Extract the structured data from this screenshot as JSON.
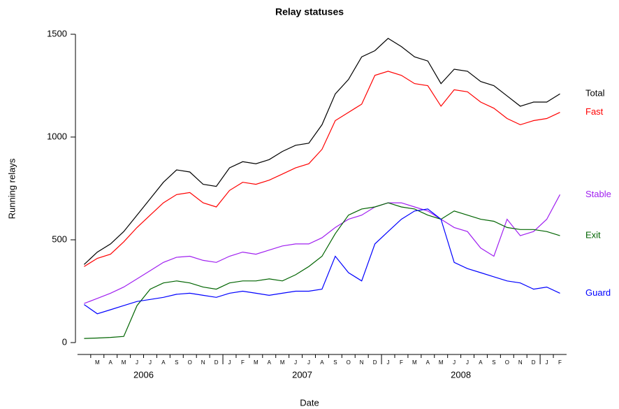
{
  "chart_data": {
    "type": "line",
    "title": "Relay statuses",
    "x_label": "Date",
    "y_label": "Running relays",
    "x": [
      "2006-02",
      "2006-03",
      "2006-04",
      "2006-05",
      "2006-06",
      "2006-07",
      "2006-08",
      "2006-09",
      "2006-10",
      "2006-11",
      "2006-12",
      "2007-01",
      "2007-02",
      "2007-03",
      "2007-04",
      "2007-05",
      "2007-06",
      "2007-07",
      "2007-08",
      "2007-09",
      "2007-10",
      "2007-11",
      "2007-12",
      "2008-01",
      "2008-02",
      "2008-03",
      "2008-04",
      "2008-05",
      "2008-06",
      "2008-07",
      "2008-08",
      "2008-09",
      "2008-10",
      "2008-11",
      "2008-12",
      "2009-01",
      "2009-02"
    ],
    "xlim": [
      "2006-02",
      "2009-02"
    ],
    "ylim": [
      0,
      1500
    ],
    "yticks": [
      0,
      500,
      1000,
      1500
    ],
    "month_ticks": [
      {
        "value": "2006-03",
        "label": "M"
      },
      {
        "value": "2006-04",
        "label": "A"
      },
      {
        "value": "2006-05",
        "label": "M"
      },
      {
        "value": "2006-06",
        "label": "J"
      },
      {
        "value": "2006-07",
        "label": "J"
      },
      {
        "value": "2006-08",
        "label": "A"
      },
      {
        "value": "2006-09",
        "label": "S"
      },
      {
        "value": "2006-10",
        "label": "O"
      },
      {
        "value": "2006-11",
        "label": "N"
      },
      {
        "value": "2006-12",
        "label": "D"
      },
      {
        "value": "2007-01",
        "label": "J"
      },
      {
        "value": "2007-02",
        "label": "F"
      },
      {
        "value": "2007-03",
        "label": "M"
      },
      {
        "value": "2007-04",
        "label": "A"
      },
      {
        "value": "2007-05",
        "label": "M"
      },
      {
        "value": "2007-06",
        "label": "J"
      },
      {
        "value": "2007-07",
        "label": "J"
      },
      {
        "value": "2007-08",
        "label": "A"
      },
      {
        "value": "2007-09",
        "label": "S"
      },
      {
        "value": "2007-10",
        "label": "O"
      },
      {
        "value": "2007-11",
        "label": "N"
      },
      {
        "value": "2007-12",
        "label": "D"
      },
      {
        "value": "2008-01",
        "label": "J"
      },
      {
        "value": "2008-02",
        "label": "F"
      },
      {
        "value": "2008-03",
        "label": "M"
      },
      {
        "value": "2008-04",
        "label": "A"
      },
      {
        "value": "2008-05",
        "label": "M"
      },
      {
        "value": "2008-06",
        "label": "J"
      },
      {
        "value": "2008-07",
        "label": "J"
      },
      {
        "value": "2008-08",
        "label": "A"
      },
      {
        "value": "2008-09",
        "label": "S"
      },
      {
        "value": "2008-10",
        "label": "O"
      },
      {
        "value": "2008-11",
        "label": "N"
      },
      {
        "value": "2008-12",
        "label": "D"
      },
      {
        "value": "2009-01",
        "label": "J"
      },
      {
        "value": "2009-02",
        "label": "F"
      }
    ],
    "years": [
      2006,
      2007,
      2008
    ],
    "series": [
      {
        "name": "Total",
        "color": "#000000",
        "values": [
          380,
          440,
          480,
          540,
          620,
          700,
          780,
          840,
          830,
          770,
          760,
          850,
          880,
          870,
          890,
          930,
          960,
          970,
          1060,
          1210,
          1280,
          1390,
          1420,
          1480,
          1440,
          1390,
          1370,
          1260,
          1330,
          1320,
          1270,
          1250,
          1200,
          1150,
          1170,
          1170,
          1210
        ]
      },
      {
        "name": "Fast",
        "color": "#ff0000",
        "values": [
          370,
          410,
          430,
          490,
          560,
          620,
          680,
          720,
          730,
          680,
          660,
          740,
          780,
          770,
          790,
          820,
          850,
          870,
          940,
          1080,
          1120,
          1160,
          1300,
          1320,
          1300,
          1260,
          1250,
          1150,
          1230,
          1220,
          1170,
          1140,
          1090,
          1060,
          1080,
          1090,
          1120
        ]
      },
      {
        "name": "Stable",
        "color": "#a020f0",
        "values": [
          190,
          215,
          240,
          270,
          310,
          350,
          390,
          415,
          420,
          400,
          390,
          420,
          440,
          430,
          450,
          470,
          480,
          480,
          510,
          560,
          600,
          620,
          660,
          680,
          680,
          660,
          640,
          600,
          560,
          540,
          460,
          420,
          600,
          520,
          540,
          600,
          720
        ]
      },
      {
        "name": "Exit",
        "color": "#006400",
        "values": [
          20,
          22,
          25,
          30,
          180,
          260,
          290,
          300,
          290,
          270,
          260,
          290,
          300,
          300,
          310,
          300,
          330,
          370,
          420,
          530,
          620,
          650,
          660,
          680,
          660,
          650,
          620,
          600,
          640,
          620,
          600,
          590,
          560,
          550,
          550,
          540,
          520
        ]
      },
      {
        "name": "Guard",
        "color": "#0000ff",
        "values": [
          185,
          140,
          160,
          180,
          200,
          210,
          220,
          235,
          240,
          230,
          220,
          240,
          250,
          240,
          230,
          240,
          250,
          250,
          260,
          420,
          340,
          300,
          480,
          540,
          600,
          640,
          650,
          600,
          390,
          360,
          340,
          320,
          300,
          290,
          260,
          270,
          240
        ]
      }
    ]
  }
}
